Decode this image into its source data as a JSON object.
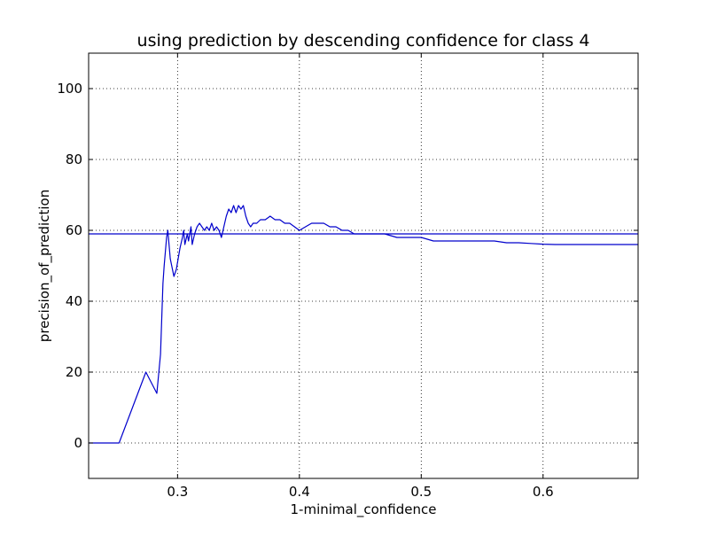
{
  "chart_data": {
    "type": "line",
    "title": "using prediction by descending confidence for class 4",
    "xlabel": "1-minimal_confidence",
    "ylabel": "precision_of_prediction",
    "xlim": [
      0.227,
      0.678
    ],
    "ylim": [
      -10,
      110
    ],
    "xticks": [
      0.3,
      0.4,
      0.5,
      0.6
    ],
    "xtick_labels": [
      "0.3",
      "0.4",
      "0.5",
      "0.6"
    ],
    "yticks": [
      0,
      20,
      40,
      60,
      80,
      100
    ],
    "ytick_labels": [
      "0",
      "20",
      "40",
      "60",
      "80",
      "100"
    ],
    "grid": true,
    "line_color": "#0000cc",
    "reference_line": {
      "y": 59
    },
    "series": [
      {
        "x": [
          0.227,
          0.252,
          0.274,
          0.283,
          0.286,
          0.288,
          0.289,
          0.291,
          0.292,
          0.294,
          0.297,
          0.299,
          0.302,
          0.304,
          0.305,
          0.306,
          0.308,
          0.309,
          0.311,
          0.312,
          0.314,
          0.316,
          0.318,
          0.32,
          0.322,
          0.324,
          0.326,
          0.328,
          0.33,
          0.332,
          0.334,
          0.336,
          0.338,
          0.34,
          0.342,
          0.344,
          0.346,
          0.348,
          0.35,
          0.352,
          0.354,
          0.356,
          0.358,
          0.36,
          0.362,
          0.365,
          0.368,
          0.372,
          0.376,
          0.38,
          0.384,
          0.388,
          0.392,
          0.396,
          0.4,
          0.405,
          0.41,
          0.415,
          0.42,
          0.425,
          0.43,
          0.435,
          0.44,
          0.445,
          0.45,
          0.46,
          0.47,
          0.48,
          0.49,
          0.5,
          0.51,
          0.52,
          0.53,
          0.54,
          0.55,
          0.56,
          0.57,
          0.58,
          0.59,
          0.6,
          0.61,
          0.62,
          0.63,
          0.64,
          0.65,
          0.66,
          0.678
        ],
        "y": [
          0,
          0,
          20,
          14,
          25,
          45,
          50,
          58,
          60,
          52,
          47,
          49,
          55,
          58,
          60,
          56,
          59,
          57,
          61,
          56,
          59,
          61,
          62,
          61,
          60,
          61,
          60,
          62,
          60,
          61,
          60,
          58,
          61,
          64,
          66,
          65,
          67,
          65,
          67,
          66,
          67,
          64,
          62,
          61,
          62,
          62,
          63,
          63,
          64,
          63,
          63,
          62,
          62,
          61,
          60,
          61,
          62,
          62,
          62,
          61,
          61,
          60,
          60,
          59,
          59,
          59,
          59,
          58,
          58,
          58,
          57,
          57,
          57,
          57,
          57,
          57,
          56.5,
          56.5,
          56.3,
          56.1,
          56,
          56,
          56,
          56,
          56,
          56,
          56
        ]
      }
    ]
  }
}
